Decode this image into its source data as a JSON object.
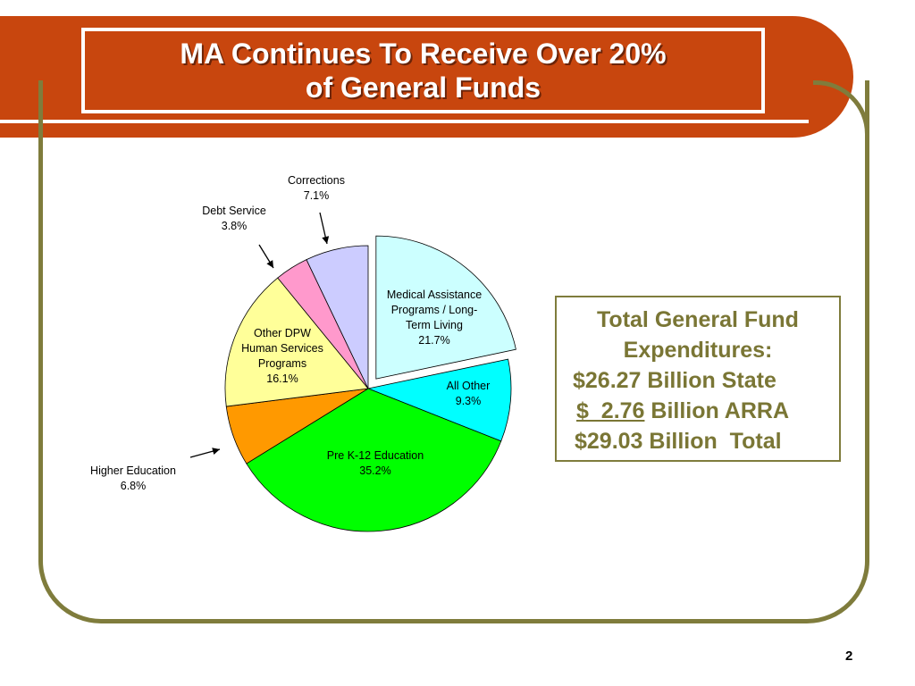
{
  "slide": {
    "title_line1": "MA Continues To Receive Over 20%",
    "title_line2": "of General Funds",
    "page_number": "2"
  },
  "colors": {
    "header": "#c8460e",
    "frame": "#7f7c3c",
    "summary_text": "#7a7635"
  },
  "summary": {
    "line1": "Total General Fund",
    "line2": "Expenditures:",
    "line3": "$26.27 Billion State",
    "line4_underlined": "$  2.76",
    "line4_rest": " Billion ARRA",
    "line5": "$29.03 Billion  Total"
  },
  "chart_data": {
    "type": "pie",
    "title": "",
    "exploded": [
      "Medical Assistance Programs / Long-Term Living"
    ],
    "slices": [
      {
        "label_lines": [
          "Medical Assistance",
          "Programs / Long-",
          "Term Living"
        ],
        "value_label": "21.7%",
        "value": 21.7,
        "color": "#ccffff"
      },
      {
        "label_lines": [
          "All Other"
        ],
        "value_label": "9.3%",
        "value": 9.3,
        "color": "#00ffff"
      },
      {
        "label_lines": [
          "Pre K-12 Education"
        ],
        "value_label": "35.2%",
        "value": 35.2,
        "color": "#00ff00"
      },
      {
        "label_lines": [
          "Higher Education"
        ],
        "value_label": "6.8%",
        "value": 6.8,
        "color": "#ff9900"
      },
      {
        "label_lines": [
          "Other DPW",
          "Human Services",
          "Programs"
        ],
        "value_label": "16.1%",
        "value": 16.1,
        "color": "#ffff99"
      },
      {
        "label_lines": [
          "Debt Service"
        ],
        "value_label": "3.8%",
        "value": 3.8,
        "color": "#ff99cc"
      },
      {
        "label_lines": [
          "Corrections"
        ],
        "value_label": "7.1%",
        "value": 7.1,
        "color": "#ccccff"
      }
    ]
  }
}
